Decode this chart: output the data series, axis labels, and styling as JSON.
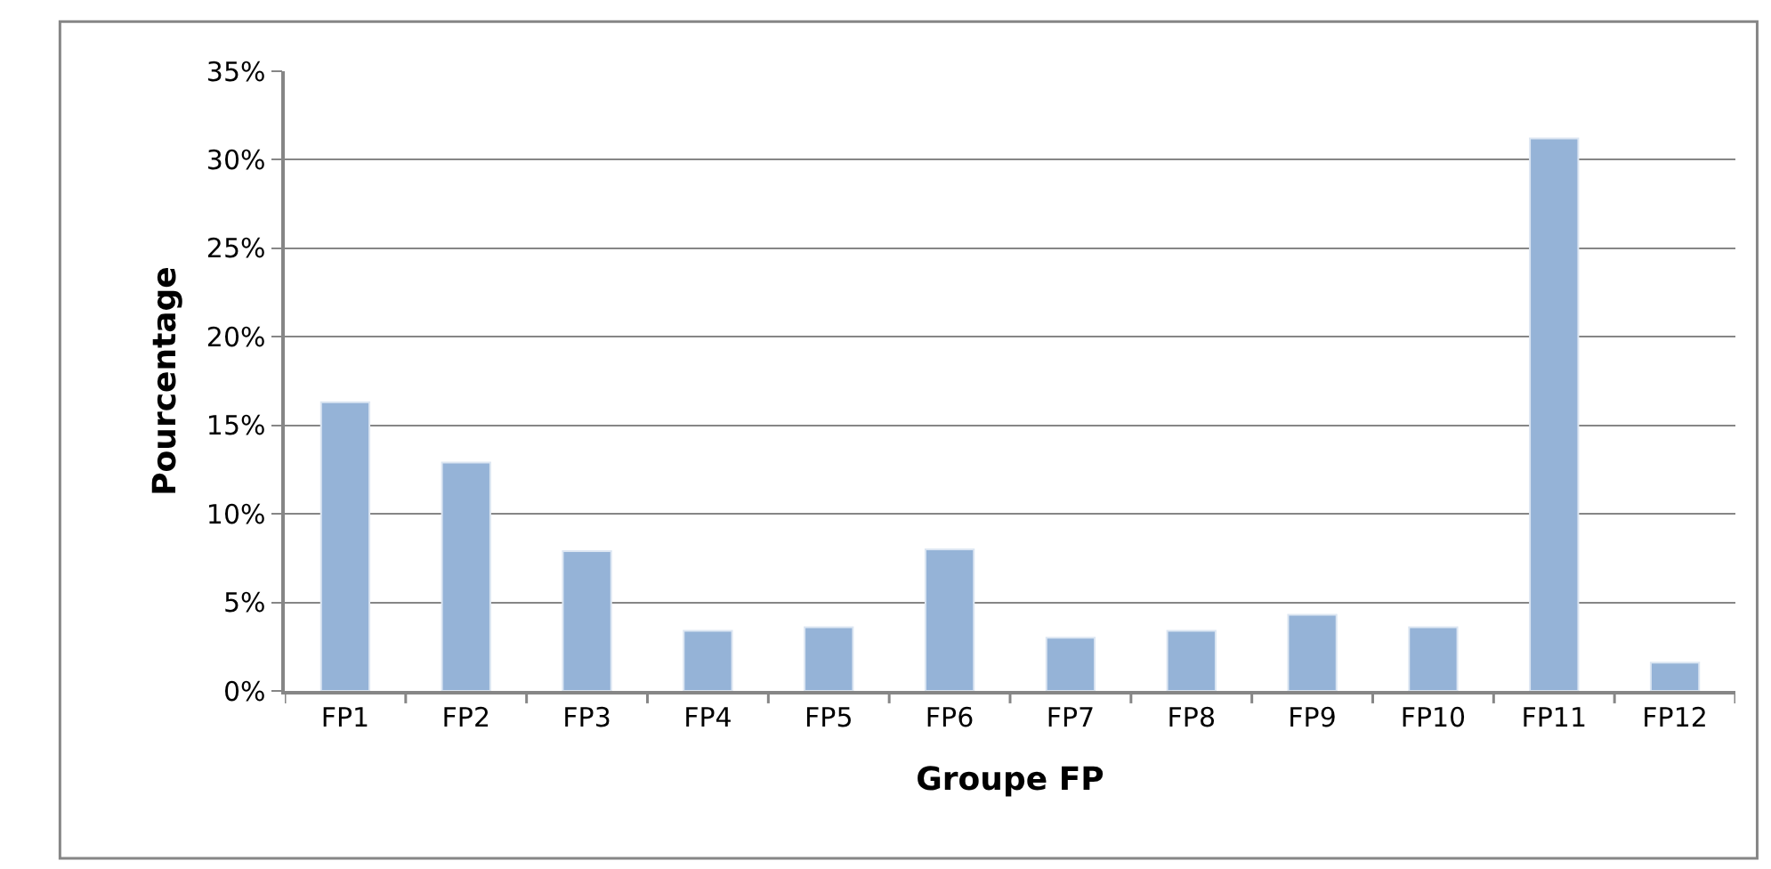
{
  "chart_data": {
    "type": "bar",
    "xlabel": "Groupe FP",
    "ylabel": "Pourcentage",
    "categories": [
      "FP1",
      "FP2",
      "FP3",
      "FP4",
      "FP5",
      "FP6",
      "FP7",
      "FP8",
      "FP9",
      "FP10",
      "FP11",
      "FP12"
    ],
    "values": [
      16.3,
      12.9,
      7.9,
      3.4,
      3.6,
      8.0,
      3.0,
      3.4,
      4.3,
      3.6,
      31.2,
      1.6
    ],
    "color": "#95b3d7",
    "ylim": [
      0,
      35
    ],
    "yticks": [
      {
        "value": 0,
        "label": "0%"
      },
      {
        "value": 5,
        "label": "5%"
      },
      {
        "value": 10,
        "label": "10%"
      },
      {
        "value": 15,
        "label": "15%"
      },
      {
        "value": 20,
        "label": "20%"
      },
      {
        "value": 25,
        "label": "25%"
      },
      {
        "value": 30,
        "label": "30%"
      },
      {
        "value": 35,
        "label": "35%"
      }
    ],
    "grid": "y"
  }
}
